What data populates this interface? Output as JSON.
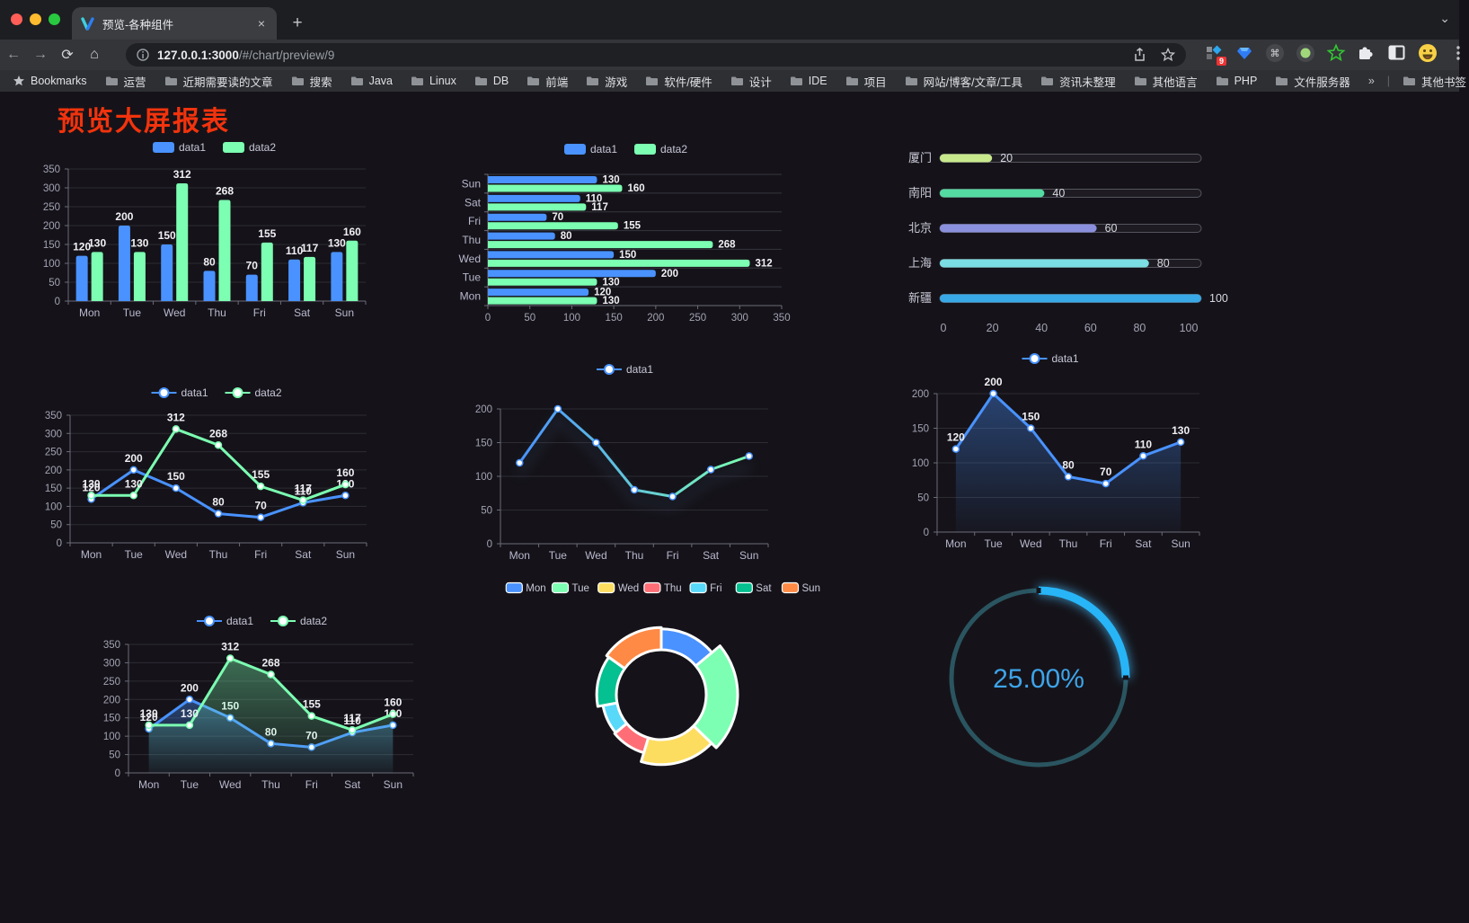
{
  "browser": {
    "tab_title": "预览-各种组件",
    "close_glyph": "×",
    "new_tab_glyph": "+",
    "url_host": "127.0.0.1:3000",
    "url_path": "/#/chart/preview/9",
    "extension_badge": "9",
    "bookmarks_label": "Bookmarks",
    "bookmarks": [
      "运营",
      "近期需要读的文章",
      "搜索",
      "Java",
      "Linux",
      "DB",
      "前端",
      "游戏",
      "软件/硬件",
      "设计",
      "IDE",
      "项目",
      "网站/博客/文章/工具",
      "资讯未整理",
      "其他语言",
      "PHP",
      "文件服务器"
    ],
    "bookmarks_overflow": "»",
    "other_bookmarks": "其他书签",
    "icons": {
      "traffic": [
        "close-red",
        "minimize-yellow",
        "maximize-green"
      ],
      "toolbar": [
        "back-arrow",
        "forward-arrow",
        "reload",
        "home",
        "info",
        "share",
        "star"
      ],
      "extensions": [
        "proxy-grid-badge",
        "blue-gem",
        "command-circle",
        "green-dot-circle",
        "green-star",
        "puzzle",
        "panel",
        "emoji-face",
        "menu-dots"
      ]
    }
  },
  "page": {
    "title": "预览大屏报表",
    "title_color": "#f2330d",
    "background": "#151319"
  },
  "chart_data": [
    {
      "id": "bar-vertical",
      "type": "bar",
      "legend": [
        "data1",
        "data2"
      ],
      "legend_position": "top",
      "categories": [
        "Mon",
        "Tue",
        "Wed",
        "Thu",
        "Fri",
        "Sat",
        "Sun"
      ],
      "series": [
        {
          "name": "data1",
          "color": "#4992ff",
          "values": [
            120,
            200,
            150,
            80,
            70,
            110,
            130
          ]
        },
        {
          "name": "data2",
          "color": "#7cffb2",
          "values": [
            130,
            130,
            312,
            268,
            155,
            117,
            160
          ]
        }
      ],
      "ylim": [
        0,
        350
      ],
      "ytick": 50,
      "grid": true,
      "value_labels": true
    },
    {
      "id": "bar-horizontal",
      "type": "bar-horizontal",
      "legend": [
        "data1",
        "data2"
      ],
      "categories_top_to_bottom": [
        "Sun",
        "Sat",
        "Fri",
        "Thu",
        "Wed",
        "Tue",
        "Mon"
      ],
      "series": [
        {
          "name": "data1",
          "color": "#4992ff",
          "values_top_to_bottom": [
            130,
            110,
            70,
            80,
            150,
            200,
            120
          ]
        },
        {
          "name": "data2",
          "color": "#7cffb2",
          "values_top_to_bottom": [
            160,
            117,
            155,
            268,
            312,
            130,
            130
          ]
        }
      ],
      "xlim": [
        0,
        350
      ],
      "xtick": 50,
      "value_labels": true
    },
    {
      "id": "progress",
      "type": "progress",
      "rows": [
        {
          "label": "厦门",
          "value": 20,
          "color": "#c8e88c"
        },
        {
          "label": "南阳",
          "value": 40,
          "color": "#54dba2"
        },
        {
          "label": "北京",
          "value": 60,
          "color": "#8b90dc"
        },
        {
          "label": "上海",
          "value": 80,
          "color": "#7bdee2"
        },
        {
          "label": "新疆",
          "value": 100,
          "color": "#38a8e6"
        }
      ],
      "xlim": [
        0,
        100
      ],
      "xticks": [
        0,
        20,
        40,
        60,
        80,
        100
      ]
    },
    {
      "id": "line-two",
      "type": "line",
      "legend": [
        "data1",
        "data2"
      ],
      "categories": [
        "Mon",
        "Tue",
        "Wed",
        "Thu",
        "Fri",
        "Sat",
        "Sun"
      ],
      "series": [
        {
          "name": "data1",
          "color": "#4992ff",
          "values": [
            120,
            200,
            150,
            80,
            70,
            110,
            130
          ]
        },
        {
          "name": "data2",
          "color": "#7cffb2",
          "values": [
            130,
            130,
            312,
            268,
            155,
            117,
            160
          ]
        }
      ],
      "ylim": [
        0,
        350
      ],
      "ytick": 50,
      "value_labels": true
    },
    {
      "id": "line-gradient",
      "type": "line",
      "legend": [
        "data1"
      ],
      "categories": [
        "Mon",
        "Tue",
        "Wed",
        "Thu",
        "Fri",
        "Sat",
        "Sun"
      ],
      "series": [
        {
          "name": "data1",
          "gradient": [
            "#4992ff",
            "#7cffb2"
          ],
          "color": "#4992ff",
          "values": [
            120,
            200,
            150,
            80,
            70,
            110,
            130
          ],
          "shadow": true
        }
      ],
      "ylim": [
        0,
        200
      ],
      "ytick": 50,
      "value_labels": false
    },
    {
      "id": "line-area",
      "type": "line",
      "legend": [
        "data1"
      ],
      "categories": [
        "Mon",
        "Tue",
        "Wed",
        "Thu",
        "Fri",
        "Sat",
        "Sun"
      ],
      "series": [
        {
          "name": "data1",
          "color": "#4992ff",
          "area": true,
          "values": [
            120,
            200,
            150,
            80,
            70,
            110,
            130
          ]
        }
      ],
      "ylim": [
        0,
        200
      ],
      "ytick": 50,
      "value_labels": true
    },
    {
      "id": "line-area-two",
      "type": "line",
      "legend": [
        "data1",
        "data2"
      ],
      "categories": [
        "Mon",
        "Tue",
        "Wed",
        "Thu",
        "Fri",
        "Sat",
        "Sun"
      ],
      "series": [
        {
          "name": "data1",
          "color": "#4992ff",
          "area": true,
          "values": [
            120,
            200,
            150,
            80,
            70,
            110,
            130
          ]
        },
        {
          "name": "data2",
          "color": "#7cffb2",
          "area": true,
          "values": [
            130,
            130,
            312,
            268,
            155,
            117,
            160
          ]
        }
      ],
      "ylim": [
        0,
        350
      ],
      "ytick": 50,
      "value_labels": true
    },
    {
      "id": "donut",
      "type": "pie",
      "rose": true,
      "legend_position": "top",
      "items": [
        {
          "label": "Mon",
          "value": 120,
          "color": "#4992ff"
        },
        {
          "label": "Tue",
          "value": 200,
          "color": "#7cffb2"
        },
        {
          "label": "Wed",
          "value": 150,
          "color": "#fddd60"
        },
        {
          "label": "Thu",
          "value": 80,
          "color": "#ff6e76"
        },
        {
          "label": "Fri",
          "value": 70,
          "color": "#58d9f9"
        },
        {
          "label": "Sat",
          "value": 110,
          "color": "#05c091"
        },
        {
          "label": "Sun",
          "value": 130,
          "color": "#ff8a45"
        }
      ],
      "border_color": "#ffffff"
    },
    {
      "id": "gauge",
      "type": "gauge",
      "value": 25,
      "display": "25.00%",
      "progress_color": "#27b5f7",
      "track_color": "#2a5560",
      "text_color": "#3ea4ea"
    }
  ]
}
